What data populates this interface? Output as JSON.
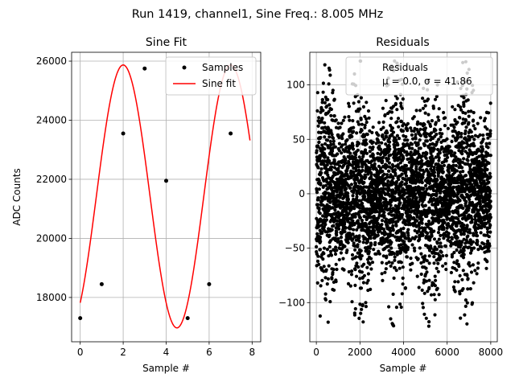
{
  "figure": {
    "suptitle": "Run 1419, channel1, Sine Freq.: 8.005 MHz"
  },
  "chart_data": [
    {
      "type": "line",
      "title": "Sine Fit",
      "xlabel": "Sample #",
      "ylabel": "ADC Counts",
      "xlim": [
        -0.4,
        8.4
      ],
      "ylim": [
        16500,
        26300
      ],
      "xticks": [
        0,
        2,
        4,
        6,
        8
      ],
      "yticks": [
        18000,
        20000,
        22000,
        24000,
        26000
      ],
      "grid": true,
      "legend_position": "top-right",
      "series": [
        {
          "name": "Samples",
          "kind": "scatter",
          "color": "#000000",
          "x": [
            0,
            1,
            2,
            3,
            4,
            5,
            6,
            7
          ],
          "y": [
            17300,
            18450,
            23550,
            25750,
            21950,
            17300,
            18450,
            23550
          ]
        },
        {
          "name": "Sine fit",
          "kind": "line",
          "color": "#ff0000",
          "model": {
            "offset": 21420,
            "amplitude": 4450,
            "period": 5,
            "phase_deg": -54
          },
          "x_range": [
            0,
            7.9
          ]
        }
      ]
    },
    {
      "type": "scatter",
      "title": "Residuals",
      "xlabel": "Sample #",
      "ylabel": "",
      "xlim": [
        -300,
        8300
      ],
      "ylim": [
        -136,
        130
      ],
      "xticks": [
        0,
        2000,
        4000,
        6000,
        8000
      ],
      "yticks": [
        -100,
        -50,
        0,
        50,
        100
      ],
      "grid": true,
      "legend_position": "top-right",
      "color": "#000000",
      "legend_lines": [
        "Residuals",
        "μ = 0.0, σ = 41.86"
      ],
      "stats": {
        "mean": 0.0,
        "std": 41.86
      },
      "n_points": 8000,
      "envelope": {
        "period_samples": 1600,
        "peak_amplitude": 118,
        "trough_amplitude": 65
      }
    }
  ]
}
